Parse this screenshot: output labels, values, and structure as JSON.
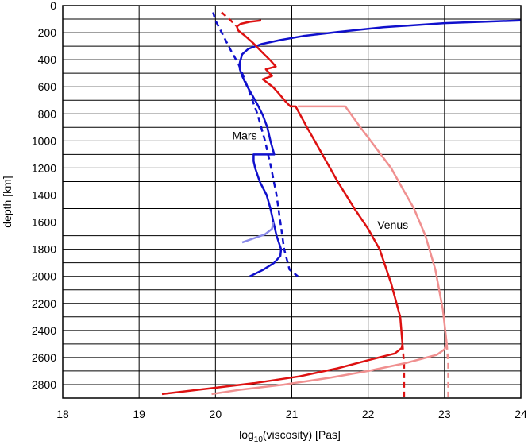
{
  "chart_data": {
    "type": "line",
    "xlabel": {
      "prefix": "log",
      "subscript": "10",
      "suffix": "(viscosity) [Pas]"
    },
    "ylabel": "depth [km]",
    "xlim": [
      18,
      24
    ],
    "ylim": [
      0,
      2900
    ],
    "y_inverted": true,
    "grid": true,
    "x_ticks": [
      "18",
      "19",
      "20",
      "21",
      "22",
      "23",
      "24"
    ],
    "y_ticks": [
      "0",
      "200",
      "400",
      "600",
      "800",
      "1000",
      "1200",
      "1400",
      "1600",
      "1800",
      "2000",
      "2200",
      "2400",
      "2600",
      "2800"
    ],
    "horizontal_gridlines": [
      0,
      100,
      200,
      300,
      400,
      500,
      600,
      700,
      800,
      900,
      1000,
      1100,
      1200,
      1300,
      1400,
      1500,
      1600,
      1700,
      1800,
      1900,
      2000,
      2100,
      2200,
      2300,
      2400,
      2500,
      2600,
      2700,
      2800,
      2900
    ],
    "annotations": [
      {
        "text": "Mars",
        "x": 20.22,
        "y": 990
      },
      {
        "text": "Venus",
        "x": 22.12,
        "y": 1650
      }
    ],
    "series": [
      {
        "color": "#1010cc",
        "style": "solid",
        "points": [
          [
            24.0,
            110
          ],
          [
            23.0,
            130
          ],
          [
            22.2,
            160
          ],
          [
            21.6,
            195
          ],
          [
            21.15,
            225
          ],
          [
            20.85,
            255
          ],
          [
            20.6,
            285
          ],
          [
            20.43,
            320
          ],
          [
            20.35,
            360
          ],
          [
            20.32,
            420
          ],
          [
            20.32,
            470
          ],
          [
            20.35,
            520
          ],
          [
            20.4,
            580
          ],
          [
            20.47,
            650
          ],
          [
            20.55,
            730
          ],
          [
            20.62,
            810
          ],
          [
            20.68,
            900
          ],
          [
            20.72,
            1000
          ],
          [
            20.77,
            1100
          ],
          [
            20.5,
            1100
          ],
          [
            20.5,
            1150
          ],
          [
            20.52,
            1200
          ],
          [
            20.58,
            1300
          ],
          [
            20.67,
            1400
          ],
          [
            20.72,
            1500
          ],
          [
            20.76,
            1600
          ],
          [
            20.8,
            1700
          ],
          [
            20.86,
            1800
          ],
          [
            20.85,
            1850
          ],
          [
            20.77,
            1900
          ],
          [
            20.63,
            1950
          ],
          [
            20.45,
            2000
          ]
        ]
      },
      {
        "color": "#1010cc",
        "style": "dashed",
        "points": [
          [
            19.97,
            50
          ],
          [
            20.0,
            110
          ],
          [
            20.1,
            220
          ],
          [
            20.2,
            330
          ],
          [
            20.3,
            430
          ],
          [
            20.42,
            600
          ],
          [
            20.55,
            800
          ],
          [
            20.65,
            1000
          ],
          [
            20.73,
            1200
          ],
          [
            20.8,
            1400
          ],
          [
            20.85,
            1600
          ],
          [
            20.9,
            1800
          ],
          [
            20.97,
            1950
          ],
          [
            21.08,
            2000
          ]
        ]
      },
      {
        "color": "#8888e8",
        "style": "solid",
        "points": [
          [
            20.76,
            1600
          ],
          [
            20.74,
            1650
          ],
          [
            20.65,
            1690
          ],
          [
            20.5,
            1720
          ],
          [
            20.35,
            1750
          ]
        ]
      },
      {
        "color": "#dd1111",
        "style": "solid",
        "points": [
          [
            20.6,
            110
          ],
          [
            20.45,
            120
          ],
          [
            20.33,
            135
          ],
          [
            20.28,
            155
          ],
          [
            20.3,
            185
          ],
          [
            20.38,
            220
          ],
          [
            20.5,
            280
          ],
          [
            20.62,
            350
          ],
          [
            20.72,
            405
          ],
          [
            20.79,
            450
          ],
          [
            20.66,
            470
          ],
          [
            20.74,
            520
          ],
          [
            20.62,
            545
          ],
          [
            20.75,
            600
          ],
          [
            20.83,
            650
          ],
          [
            20.92,
            710
          ],
          [
            20.98,
            745
          ],
          [
            21.05,
            745
          ],
          [
            21.2,
            900
          ],
          [
            21.4,
            1100
          ],
          [
            21.6,
            1300
          ],
          [
            21.82,
            1500
          ],
          [
            22.0,
            1650
          ],
          [
            22.15,
            1800
          ],
          [
            22.3,
            2050
          ],
          [
            22.42,
            2300
          ],
          [
            22.45,
            2500
          ],
          [
            22.44,
            2530
          ],
          [
            22.35,
            2570
          ],
          [
            22.0,
            2620
          ],
          [
            21.6,
            2680
          ],
          [
            21.1,
            2740
          ],
          [
            20.5,
            2790
          ],
          [
            19.9,
            2830
          ],
          [
            19.3,
            2870
          ]
        ]
      },
      {
        "color": "#dd1111",
        "style": "dashed",
        "points": [
          [
            20.08,
            50
          ],
          [
            20.2,
            110
          ],
          [
            20.27,
            150
          ]
        ]
      },
      {
        "color": "#dd1111",
        "style": "dashed",
        "points": [
          [
            22.45,
            2500
          ],
          [
            22.47,
            2650
          ],
          [
            22.47,
            2900
          ]
        ]
      },
      {
        "color": "#f09090",
        "style": "solid",
        "points": [
          [
            21.08,
            745
          ],
          [
            21.7,
            745
          ],
          [
            21.9,
            900
          ],
          [
            22.1,
            1050
          ],
          [
            22.3,
            1200
          ],
          [
            22.45,
            1350
          ],
          [
            22.6,
            1500
          ],
          [
            22.75,
            1700
          ],
          [
            22.88,
            1950
          ],
          [
            22.98,
            2250
          ],
          [
            23.03,
            2500
          ],
          [
            23.0,
            2540
          ],
          [
            22.9,
            2580
          ],
          [
            22.5,
            2640
          ],
          [
            22.0,
            2700
          ],
          [
            21.5,
            2750
          ],
          [
            20.9,
            2800
          ],
          [
            20.3,
            2840
          ],
          [
            19.95,
            2870
          ]
        ]
      },
      {
        "color": "#f09090",
        "style": "dashed",
        "points": [
          [
            23.03,
            2500
          ],
          [
            23.05,
            2650
          ],
          [
            23.05,
            2900
          ]
        ]
      }
    ]
  }
}
